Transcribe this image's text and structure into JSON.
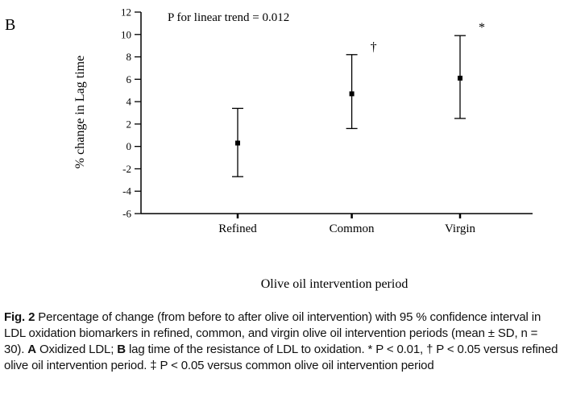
{
  "panel_label": "B",
  "chart_data": {
    "type": "scatter",
    "title": "",
    "annotation": "P for linear trend = 0.012",
    "xlabel": "Olive oil intervention period",
    "ylabel": "% change in Lag time",
    "ylim": [
      -6,
      12
    ],
    "ytick_step": 2,
    "yticks": [
      -6,
      -4,
      -2,
      0,
      2,
      4,
      6,
      8,
      10,
      12
    ],
    "categories": [
      "Refined",
      "Common",
      "Virgin"
    ],
    "series": [
      {
        "name": "% change in lag time (mean with 95% CI)",
        "points": [
          {
            "category": "Refined",
            "mean": 0.3,
            "ci_low": -2.7,
            "ci_high": 3.4,
            "sig": ""
          },
          {
            "category": "Common",
            "mean": 4.7,
            "ci_low": 1.6,
            "ci_high": 8.2,
            "sig": "†"
          },
          {
            "category": "Virgin",
            "mean": 6.1,
            "ci_low": 2.5,
            "ci_high": 9.9,
            "sig": "*"
          }
        ]
      }
    ],
    "marker": "square",
    "color": "#000000",
    "grid": false,
    "legend": "none"
  },
  "caption": {
    "segments": [
      {
        "text": "Fig. 2",
        "bold": true
      },
      {
        "text": "  Percentage of change (from before to after olive oil intervention) with 95 % confidence interval in LDL oxidation biomarkers in refined, common, and virgin olive oil intervention periods (mean ± SD, n = 30). ",
        "bold": false
      },
      {
        "text": "A",
        "bold": true
      },
      {
        "text": " Oxidized LDL; ",
        "bold": false
      },
      {
        "text": "B",
        "bold": true
      },
      {
        "text": " lag time of the resistance of LDL to oxidation. * P < 0.01, † P < 0.05 versus refined olive oil intervention period. ‡ P < 0.05 versus common olive oil intervention period",
        "bold": false
      }
    ]
  }
}
